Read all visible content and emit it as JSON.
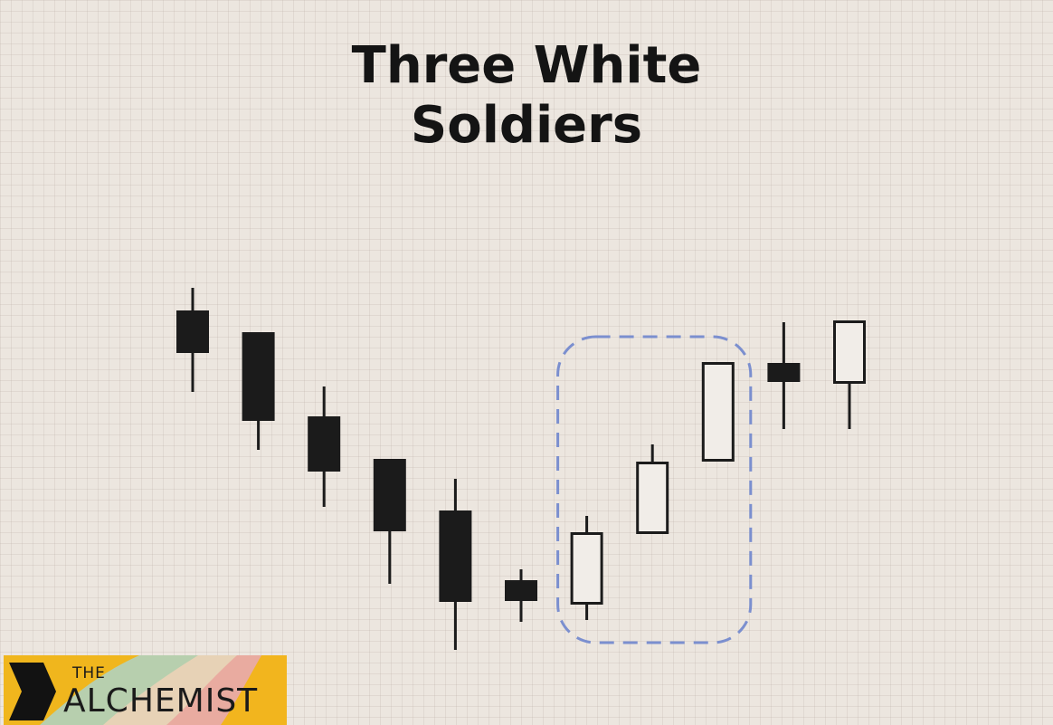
{
  "title_lines": [
    "Three White",
    "Soldiers"
  ],
  "chart_data": {
    "type": "candlestick",
    "y_direction": "up",
    "candles": [
      {
        "open": 457,
        "close": 410,
        "high": 482,
        "low": 367,
        "color": "black"
      },
      {
        "open": 433,
        "close": 335,
        "high": 433,
        "low": 303,
        "color": "black"
      },
      {
        "open": 340,
        "close": 279,
        "high": 373,
        "low": 240,
        "color": "black"
      },
      {
        "open": 293,
        "close": 213,
        "high": 293,
        "low": 155,
        "color": "black"
      },
      {
        "open": 236,
        "close": 135,
        "high": 271,
        "low": 82,
        "color": "black"
      },
      {
        "open": 159,
        "close": 136,
        "high": 171,
        "low": 113,
        "color": "black"
      },
      {
        "open": 132,
        "close": 212,
        "high": 230,
        "low": 115,
        "color": "white"
      },
      {
        "open": 210,
        "close": 290,
        "high": 309,
        "low": 210,
        "color": "white"
      },
      {
        "open": 290,
        "close": 400,
        "high": 400,
        "low": 290,
        "color": "white"
      },
      {
        "open": 399,
        "close": 378,
        "high": 444,
        "low": 326,
        "color": "black"
      },
      {
        "open": 376,
        "close": 446,
        "high": 446,
        "low": 326,
        "color": "white"
      }
    ],
    "highlight": {
      "from_index": 6,
      "to_index": 8
    },
    "colors": {
      "bear": "#1b1b1b",
      "bull_fill": "#f1ede8",
      "outline": "#1b1b1b",
      "highlight": "#7b8fcf"
    }
  },
  "logo": {
    "top": "THE",
    "main": "ALCHEMIST"
  }
}
